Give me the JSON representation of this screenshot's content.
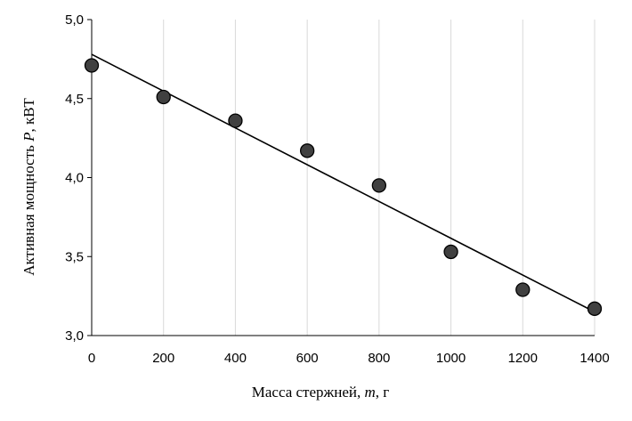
{
  "chart_data": {
    "type": "scatter",
    "x": [
      0,
      200,
      400,
      600,
      800,
      1000,
      1200,
      1400
    ],
    "y": [
      4.71,
      4.51,
      4.36,
      4.17,
      3.95,
      3.53,
      3.29,
      3.17
    ],
    "trendline": {
      "type": "linear",
      "x": [
        0,
        1400
      ],
      "y": [
        4.78,
        3.15
      ]
    },
    "xlabel": {
      "main": "Масса стержней, ",
      "var": "m",
      "unit": ", г"
    },
    "ylabel": {
      "main": "Активная мощность ",
      "var": "P",
      "unit": ", кВТ"
    },
    "xlim": [
      0,
      1400
    ],
    "ylim": [
      3.0,
      5.0
    ],
    "xticks": [
      0,
      200,
      400,
      600,
      800,
      1000,
      1200,
      1400
    ],
    "xtick_labels": [
      "0",
      "200",
      "400",
      "600",
      "800",
      "1000",
      "1200",
      "1400"
    ],
    "yticks": [
      3.0,
      3.5,
      4.0,
      4.5,
      5.0
    ],
    "ytick_labels": [
      "3,0",
      "3,5",
      "4,0",
      "4,5",
      "5,0"
    ],
    "grid": "vertical",
    "colors": {
      "marker_fill": "#404040",
      "marker_stroke": "#000000",
      "line": "#000000",
      "grid": "#d9d9d9"
    }
  }
}
